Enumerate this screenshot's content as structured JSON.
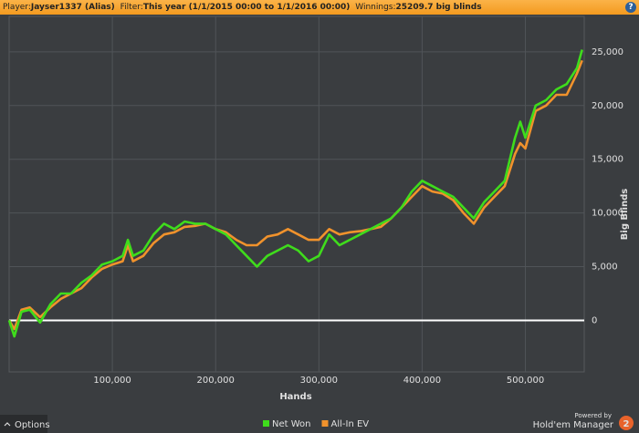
{
  "header": {
    "player_label": "Player:",
    "player": "Jayser1337 (Alias)",
    "filter_label": "Filter:",
    "filter": "This year (1/1/2015 00:00 to 1/1/2016 00:00)",
    "winnings_label": "Winnings:",
    "winnings": "25209.7 big blinds",
    "help": "?"
  },
  "footer": {
    "options": "Options",
    "powered_by": "Powered by",
    "brand": "Hold'em Manager",
    "brand_badge": "2"
  },
  "chart_data": {
    "type": "line",
    "x_label": "Hands",
    "y_label": "Big Blinds",
    "x": [
      0,
      5000,
      12000,
      20000,
      30000,
      40000,
      50000,
      60000,
      70000,
      80000,
      90000,
      100000,
      110000,
      115000,
      120000,
      130000,
      140000,
      150000,
      160000,
      170000,
      180000,
      190000,
      200000,
      210000,
      220000,
      230000,
      240000,
      250000,
      260000,
      270000,
      280000,
      290000,
      300000,
      310000,
      320000,
      330000,
      340000,
      350000,
      360000,
      370000,
      380000,
      390000,
      400000,
      410000,
      420000,
      430000,
      440000,
      450000,
      460000,
      470000,
      480000,
      490000,
      495000,
      500000,
      510000,
      520000,
      530000,
      540000,
      550000,
      555000
    ],
    "series": [
      {
        "name": "Net Won",
        "color": "#3fdc1c",
        "values": [
          0,
          -1500,
          800,
          1000,
          -200,
          1500,
          2500,
          2500,
          3500,
          4200,
          5200,
          5500,
          6000,
          7500,
          6000,
          6500,
          8000,
          9000,
          8500,
          9200,
          9000,
          9000,
          8500,
          8000,
          7000,
          6000,
          5000,
          6000,
          6500,
          7000,
          6500,
          5500,
          6000,
          8000,
          7000,
          7500,
          8000,
          8500,
          9000,
          9500,
          10500,
          12000,
          13000,
          12500,
          12000,
          11500,
          10500,
          9500,
          11000,
          12000,
          13000,
          17000,
          18500,
          17000,
          20000,
          20500,
          21500,
          22000,
          23500,
          25200
        ]
      },
      {
        "name": "All-In EV",
        "color": "#f0922c",
        "values": [
          0,
          -800,
          1000,
          1200,
          300,
          1200,
          2000,
          2500,
          3000,
          4000,
          4800,
          5200,
          5500,
          7000,
          5500,
          6000,
          7200,
          8000,
          8200,
          8700,
          8800,
          9000,
          8500,
          8200,
          7500,
          7000,
          7000,
          7800,
          8000,
          8500,
          8000,
          7500,
          7500,
          8500,
          8000,
          8200,
          8300,
          8500,
          8700,
          9500,
          10500,
          11500,
          12500,
          12000,
          11800,
          11200,
          10000,
          9000,
          10500,
          11500,
          12500,
          15500,
          16500,
          16000,
          19500,
          20000,
          21000,
          21000,
          23000,
          24200
        ]
      }
    ],
    "xlim": [
      0,
      557000
    ],
    "xticks": [
      {
        "value": 100000,
        "label": "100,000"
      },
      {
        "value": 200000,
        "label": "200,000"
      },
      {
        "value": 300000,
        "label": "300,000"
      },
      {
        "value": 400000,
        "label": "400,000"
      },
      {
        "value": 500000,
        "label": "500,000"
      }
    ],
    "ylim": [
      -4800,
      28300
    ],
    "yticks": [
      0,
      {
        "value": 5000,
        "label": "5,000"
      },
      {
        "value": 10000,
        "label": "10,000"
      },
      {
        "value": 15000,
        "label": "15,000"
      },
      {
        "value": 20000,
        "label": "20,000"
      },
      {
        "value": 25000,
        "label": "25,000"
      }
    ],
    "grid": true,
    "legend": "bottom"
  }
}
